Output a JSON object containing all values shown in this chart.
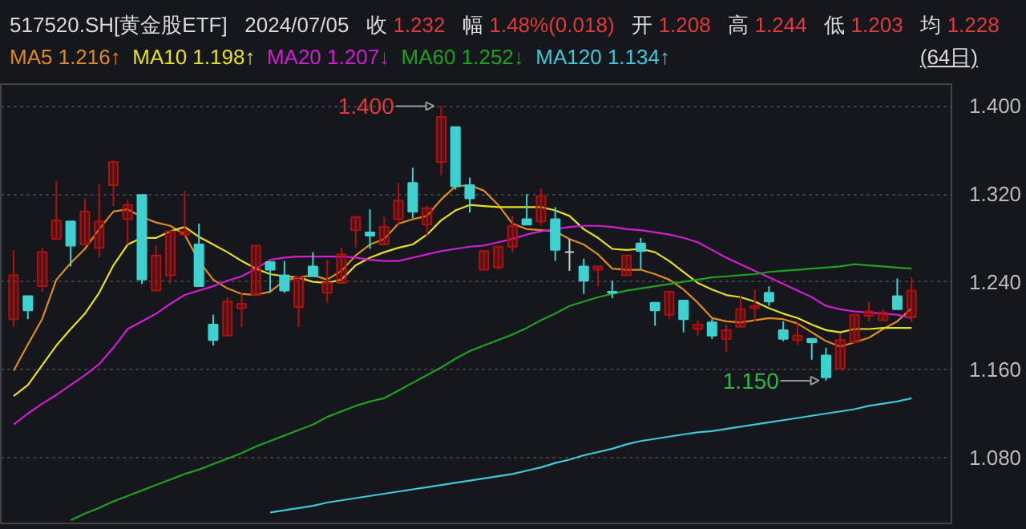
{
  "chart_data": {
    "type": "candlestick",
    "title": "517520.SH[黄金股ETF]",
    "subtitle": "2024/07/05",
    "annotations": [
      "收 1.232",
      "幅 1.48%(0.018)",
      "开 1.208",
      "高 1.244",
      "低 1.203",
      "均 1.228",
      "(64日)",
      "1.400",
      "1.150"
    ],
    "categories": [
      null,
      null,
      null,
      null,
      null,
      null,
      null,
      null,
      null,
      null,
      null,
      null,
      null,
      null,
      null,
      null,
      null,
      null,
      null,
      null,
      null,
      null,
      null,
      null,
      null,
      null,
      null,
      null,
      null,
      null,
      null,
      null,
      null,
      null,
      null,
      null,
      null,
      null,
      null,
      null,
      null,
      null,
      null,
      null,
      null,
      null,
      null,
      null,
      null,
      null,
      null,
      null,
      null,
      null,
      null,
      null,
      null,
      null,
      null,
      null,
      null,
      null,
      null,
      null
    ],
    "ohlc": [
      [
        1.206,
        1.269,
        1.199,
        1.246
      ],
      [
        1.227,
        1.227,
        1.206,
        1.214
      ],
      [
        1.236,
        1.271,
        1.231,
        1.267
      ],
      [
        1.279,
        1.332,
        1.279,
        1.296
      ],
      [
        1.295,
        1.295,
        1.254,
        1.273
      ],
      [
        1.274,
        1.316,
        1.274,
        1.304
      ],
      [
        1.271,
        1.329,
        1.262,
        1.295
      ],
      [
        1.328,
        1.351,
        1.309,
        1.349
      ],
      [
        1.297,
        1.315,
        1.274,
        1.31
      ],
      [
        1.319,
        1.319,
        1.238,
        1.242
      ],
      [
        1.232,
        1.273,
        1.232,
        1.264
      ],
      [
        1.246,
        1.286,
        1.238,
        1.286
      ],
      [
        1.283,
        1.323,
        1.281,
        1.286
      ],
      [
        1.274,
        1.293,
        1.236,
        1.236
      ],
      [
        1.201,
        1.21,
        1.182,
        1.187
      ],
      [
        1.191,
        1.226,
        1.191,
        1.222
      ],
      [
        1.216,
        1.23,
        1.199,
        1.22
      ],
      [
        1.228,
        1.273,
        1.228,
        1.273
      ],
      [
        1.258,
        1.258,
        1.23,
        1.251
      ],
      [
        1.246,
        1.259,
        1.23,
        1.232
      ],
      [
        1.217,
        1.244,
        1.199,
        1.244
      ],
      [
        1.254,
        1.267,
        1.245,
        1.245
      ],
      [
        1.23,
        1.26,
        1.221,
        1.239
      ],
      [
        1.239,
        1.271,
        1.239,
        1.265
      ],
      [
        1.287,
        1.299,
        1.271,
        1.299
      ],
      [
        1.285,
        1.306,
        1.27,
        1.282
      ],
      [
        1.274,
        1.299,
        1.274,
        1.29
      ],
      [
        1.297,
        1.33,
        1.291,
        1.314
      ],
      [
        1.33,
        1.344,
        1.298,
        1.304
      ],
      [
        1.292,
        1.309,
        1.281,
        1.307
      ],
      [
        1.349,
        1.4,
        1.337,
        1.39
      ],
      [
        1.381,
        1.381,
        1.324,
        1.327
      ],
      [
        1.328,
        1.335,
        1.303,
        1.316
      ],
      [
        1.251,
        1.268,
        1.251,
        1.268
      ],
      [
        1.253,
        1.272,
        1.251,
        1.272
      ],
      [
        1.272,
        1.3,
        1.267,
        1.291
      ],
      [
        1.297,
        1.32,
        1.292,
        1.292
      ],
      [
        1.295,
        1.325,
        1.291,
        1.318
      ],
      [
        1.297,
        1.308,
        1.259,
        1.269
      ],
      [
        1.267,
        1.279,
        1.25,
        1.267
      ],
      [
        1.254,
        1.261,
        1.229,
        1.241
      ],
      [
        1.251,
        1.254,
        1.236,
        1.254
      ],
      [
        1.231,
        1.241,
        1.225,
        1.23
      ],
      [
        1.246,
        1.264,
        1.246,
        1.264
      ],
      [
        1.275,
        1.28,
        1.251,
        1.268
      ],
      [
        1.221,
        1.221,
        1.2,
        1.214
      ],
      [
        1.21,
        1.231,
        1.206,
        1.231
      ],
      [
        1.223,
        1.223,
        1.194,
        1.206
      ],
      [
        1.197,
        1.205,
        1.191,
        1.201
      ],
      [
        1.203,
        1.206,
        1.188,
        1.191
      ],
      [
        1.188,
        1.201,
        1.176,
        1.196
      ],
      [
        1.199,
        1.227,
        1.198,
        1.215
      ],
      [
        1.216,
        1.233,
        1.204,
        1.218
      ],
      [
        1.23,
        1.236,
        1.218,
        1.222
      ],
      [
        1.196,
        1.204,
        1.186,
        1.188
      ],
      [
        1.187,
        1.204,
        1.182,
        1.191
      ],
      [
        1.188,
        1.188,
        1.169,
        1.185
      ],
      [
        1.173,
        1.18,
        1.15,
        1.153
      ],
      [
        1.161,
        1.193,
        1.161,
        1.187
      ],
      [
        1.185,
        1.21,
        1.185,
        1.21
      ],
      [
        1.209,
        1.222,
        1.204,
        1.213
      ],
      [
        1.205,
        1.215,
        1.204,
        1.212
      ],
      [
        1.227,
        1.243,
        1.215,
        1.215
      ],
      [
        1.208,
        1.244,
        1.203,
        1.232
      ]
    ],
    "colors": [
      "#b30f0f",
      "#3fd0d0",
      "#b30f0f",
      "#b30f0f",
      "#3fd0d0",
      "#b30f0f",
      "#b30f0f",
      "#b30f0f",
      "#b30f0f",
      "#3fd0d0",
      "#b30f0f",
      "#b30f0f",
      "#b30f0f",
      "#3fd0d0",
      "#3fd0d0",
      "#b30f0f",
      "#b30f0f",
      "#b30f0f",
      "#3fd0d0",
      "#3fd0d0",
      "#b30f0f",
      "#3fd0d0",
      "#b30f0f",
      "#b30f0f",
      "#b30f0f",
      "#3fd0d0",
      "#b30f0f",
      "#b30f0f",
      "#3fd0d0",
      "#b30f0f",
      "#b30f0f",
      "#3fd0d0",
      "#3fd0d0",
      "#b30f0f",
      "#b30f0f",
      "#b30f0f",
      "#3fd0d0",
      "#b30f0f",
      "#3fd0d0",
      "#cccccc",
      "#3fd0d0",
      "#b30f0f",
      "#3fd0d0",
      "#b30f0f",
      "#3fd0d0",
      "#3fd0d0",
      "#b30f0f",
      "#3fd0d0",
      "#b30f0f",
      "#3fd0d0",
      "#b30f0f",
      "#b30f0f",
      "#b30f0f",
      "#3fd0d0",
      "#3fd0d0",
      "#b30f0f",
      "#3fd0d0",
      "#3fd0d0",
      "#b30f0f",
      "#b30f0f",
      "#b30f0f",
      "#b30f0f",
      "#3fd0d0",
      "#b30f0f"
    ],
    "series": [
      {
        "type": "line",
        "name": "MA5 1.216↑",
        "color": "#e08a1e",
        "values": [
          1.159,
          1.183,
          1.206,
          1.242,
          1.257,
          1.27,
          1.288,
          1.304,
          1.306,
          1.299,
          1.294,
          1.291,
          1.283,
          1.259,
          1.242,
          1.234,
          1.229,
          1.228,
          1.231,
          1.241,
          1.244,
          1.246,
          1.242,
          1.25,
          1.264,
          1.274,
          1.279,
          1.293,
          1.297,
          1.3,
          1.315,
          1.327,
          1.328,
          1.323,
          1.31,
          1.293,
          1.288,
          1.287,
          1.286,
          1.279,
          1.274,
          1.265,
          1.252,
          1.251,
          1.251,
          1.247,
          1.242,
          1.233,
          1.221,
          1.207,
          1.204,
          1.203,
          1.205,
          1.207,
          1.206,
          1.202,
          1.194,
          1.186,
          1.181,
          1.185,
          1.189,
          1.197,
          1.204,
          1.216
        ]
      },
      {
        "type": "line",
        "name": "MA10 1.198↑",
        "color": "#e6e020",
        "values": [
          1.136,
          1.146,
          1.164,
          1.182,
          1.197,
          1.211,
          1.23,
          1.255,
          1.274,
          1.28,
          1.28,
          1.286,
          1.29,
          1.281,
          1.274,
          1.267,
          1.259,
          1.252,
          1.247,
          1.245,
          1.244,
          1.24,
          1.239,
          1.242,
          1.255,
          1.262,
          1.267,
          1.271,
          1.274,
          1.283,
          1.296,
          1.305,
          1.31,
          1.309,
          1.308,
          1.308,
          1.308,
          1.308,
          1.305,
          1.3,
          1.288,
          1.28,
          1.27,
          1.269,
          1.27,
          1.267,
          1.259,
          1.249,
          1.239,
          1.233,
          1.228,
          1.226,
          1.222,
          1.216,
          1.211,
          1.207,
          1.201,
          1.196,
          1.194,
          1.197,
          1.197,
          1.198,
          1.198,
          1.198
        ]
      },
      {
        "type": "line",
        "name": "MA20 1.207↓",
        "color": "#d21ed2",
        "values": [
          1.11,
          1.12,
          1.129,
          1.137,
          1.146,
          1.155,
          1.165,
          1.18,
          1.197,
          1.204,
          1.211,
          1.22,
          1.228,
          1.232,
          1.236,
          1.241,
          1.245,
          1.252,
          1.26,
          1.262,
          1.263,
          1.263,
          1.263,
          1.263,
          1.262,
          1.26,
          1.259,
          1.259,
          1.262,
          1.265,
          1.268,
          1.27,
          1.272,
          1.273,
          1.276,
          1.279,
          1.283,
          1.286,
          1.288,
          1.29,
          1.291,
          1.291,
          1.29,
          1.288,
          1.287,
          1.285,
          1.283,
          1.28,
          1.276,
          1.269,
          1.262,
          1.256,
          1.25,
          1.244,
          1.238,
          1.232,
          1.226,
          1.218,
          1.215,
          1.213,
          1.212,
          1.211,
          1.21,
          1.207
        ]
      },
      {
        "type": "line",
        "name": "MA60 1.252↓",
        "color": "#1fa01f",
        "values": [
          null,
          null,
          null,
          null,
          1.023,
          1.029,
          1.034,
          1.04,
          1.045,
          1.05,
          1.055,
          1.06,
          1.065,
          1.069,
          1.074,
          1.079,
          1.084,
          1.09,
          1.095,
          1.1,
          1.105,
          1.11,
          1.117,
          1.122,
          1.127,
          1.131,
          1.134,
          1.141,
          1.148,
          1.155,
          1.162,
          1.17,
          1.177,
          1.182,
          1.187,
          1.192,
          1.198,
          1.205,
          1.211,
          1.218,
          1.222,
          1.226,
          1.229,
          1.232,
          1.234,
          1.236,
          1.238,
          1.24,
          1.242,
          1.244,
          1.245,
          1.246,
          1.247,
          1.249,
          1.25,
          1.251,
          1.252,
          1.253,
          1.254,
          1.256,
          1.255,
          1.254,
          1.253,
          1.252
        ]
      },
      {
        "type": "line",
        "name": "MA120 1.134↑",
        "color": "#3fc8d8",
        "values": [
          null,
          null,
          null,
          null,
          null,
          null,
          null,
          null,
          null,
          null,
          null,
          null,
          null,
          null,
          null,
          null,
          null,
          null,
          1.03,
          1.032,
          1.034,
          1.036,
          1.039,
          1.041,
          1.043,
          1.045,
          1.047,
          1.049,
          1.051,
          1.053,
          1.055,
          1.057,
          1.059,
          1.061,
          1.063,
          1.065,
          1.068,
          1.071,
          1.075,
          1.078,
          1.082,
          1.085,
          1.088,
          1.092,
          1.095,
          1.097,
          1.099,
          1.101,
          1.103,
          1.104,
          1.106,
          1.108,
          1.11,
          1.112,
          1.114,
          1.116,
          1.118,
          1.12,
          1.122,
          1.124,
          1.127,
          1.129,
          1.131,
          1.134
        ]
      }
    ],
    "ylim": [
      1.02,
      1.42
    ],
    "yticks": [
      {
        "value": 1.08,
        "label": "1.080"
      },
      {
        "value": 1.16,
        "label": "1.160"
      },
      {
        "value": 1.24,
        "label": "1.240"
      },
      {
        "value": 1.32,
        "label": "1.320"
      },
      {
        "value": 1.4,
        "label": "1.400"
      }
    ],
    "tick_labels": "y",
    "grid": "y"
  }
}
